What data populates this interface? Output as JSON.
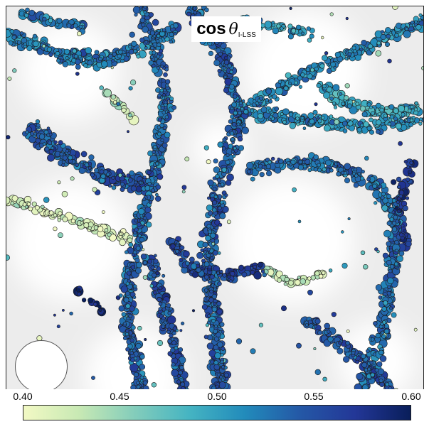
{
  "title": {
    "prefix": "cos",
    "symbol": "θ",
    "subscript": "I-LSS"
  },
  "colorbar": {
    "ticks": [
      "0.40",
      "0.45",
      "0.50",
      "0.55",
      "0.60"
    ],
    "min": 0.4,
    "max": 0.6,
    "colors": [
      "#f2f9c4",
      "#c8e9b4",
      "#84cdbb",
      "#45b4c2",
      "#228bbb",
      "#2458a6",
      "#233797",
      "#091e5a"
    ]
  },
  "background": {
    "base_color": "#ececec",
    "void_color": "#ffffff",
    "node_color": "#f3f3f3",
    "marker_edge_color": "#1a1a1a"
  },
  "reference_marker": {
    "fill": "#ffffff"
  }
}
